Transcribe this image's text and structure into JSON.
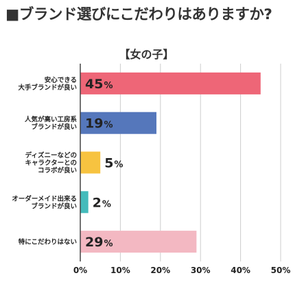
{
  "chart_data": {
    "type": "bar",
    "orientation": "horizontal",
    "title": "■ブランド選びにこだわりはありますか?",
    "subtitle": "【女の子】",
    "categories": [
      [
        "安心できる",
        "大手ブランドが良い"
      ],
      [
        "人気が高い工房系",
        "ブランドが良い"
      ],
      [
        "ディズニーなどの",
        "キャラクターとの",
        "コラボが良い"
      ],
      [
        "オーダーメイド出来る",
        "ブランドが良い"
      ],
      [
        "特にこだわりはない"
      ]
    ],
    "values": [
      45,
      19,
      5,
      2,
      29
    ],
    "value_labels": [
      "45",
      "19",
      "5",
      "2",
      "29"
    ],
    "value_suffix": "%",
    "colors": [
      "#ee6677",
      "#5577bb",
      "#f7c340",
      "#44bbbb",
      "#f3b8c2"
    ],
    "xlim": [
      0,
      50
    ],
    "x_ticks": [
      0,
      10,
      20,
      30,
      40,
      50
    ],
    "x_tick_labels": [
      "0%",
      "10%",
      "20%",
      "30%",
      "40%",
      "50%"
    ],
    "grid": true,
    "xlabel": "",
    "ylabel": ""
  }
}
